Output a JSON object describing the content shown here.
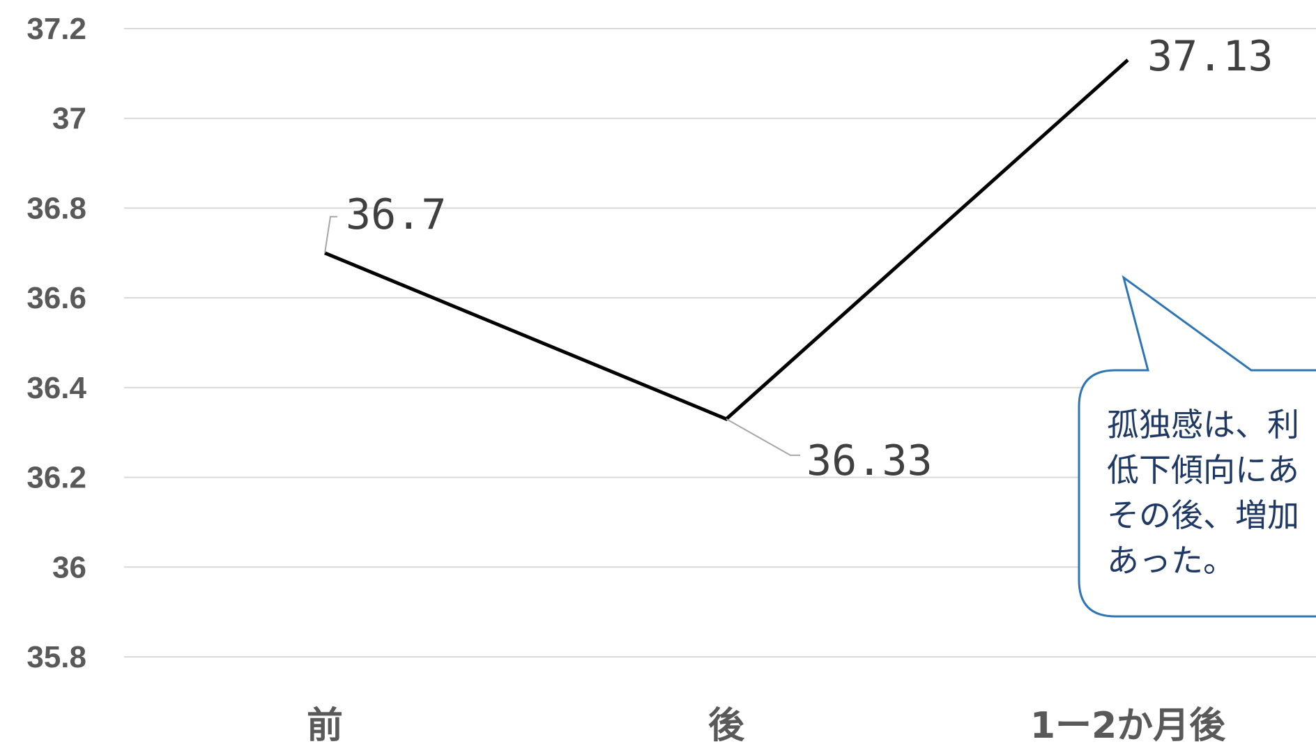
{
  "chart_data": {
    "type": "line",
    "categories": [
      "前",
      "後",
      "1ー2か月後"
    ],
    "series": [
      {
        "values": [
          36.7,
          36.33,
          37.13
        ],
        "data_labels": [
          "36.7",
          "36.33",
          "37.13"
        ],
        "color": "#000000"
      }
    ],
    "y_ticks": [
      "35.8",
      "36",
      "36.2",
      "36.4",
      "36.6",
      "36.8",
      "37",
      "37.2"
    ],
    "ylim": [
      35.8,
      37.2
    ],
    "grid": true,
    "legend": "none",
    "title": "",
    "xlabel": "",
    "ylabel": ""
  },
  "callout": {
    "lines": [
      "孤独感は、利",
      "低下傾向にあ",
      "その後、増加",
      "あった。"
    ],
    "border_color": "#2e75b6",
    "text_color": "#1f3864"
  }
}
